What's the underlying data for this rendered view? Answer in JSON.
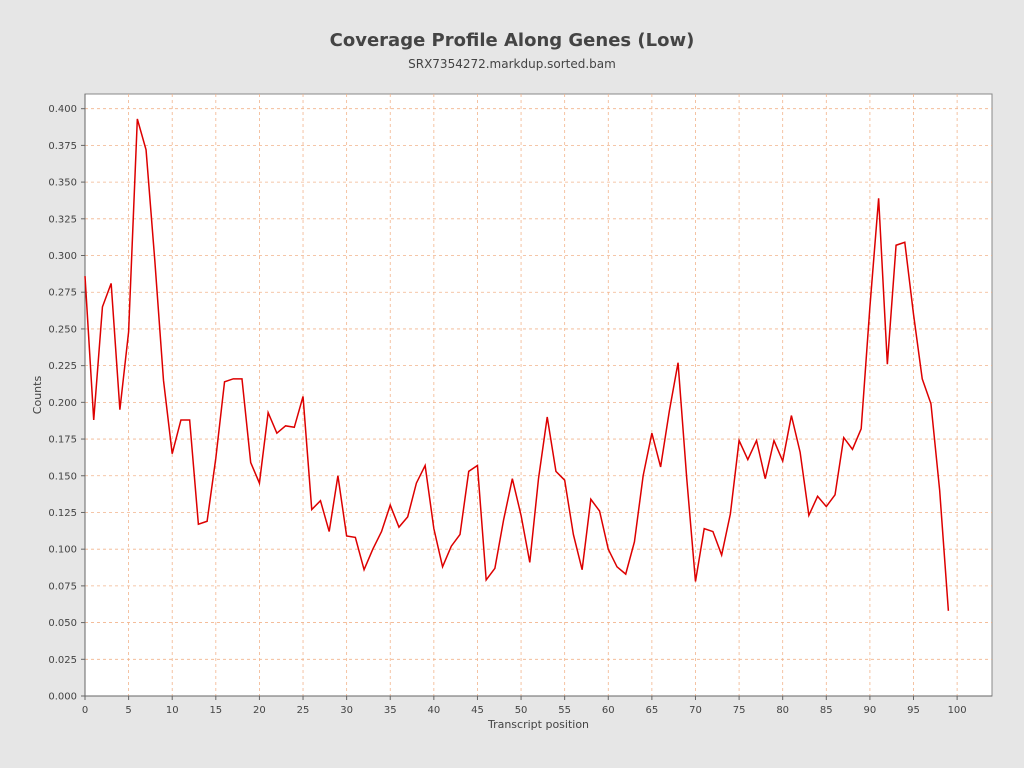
{
  "chart_data": {
    "type": "line",
    "title": "Coverage Profile Along Genes (Low)",
    "subtitle": "SRX7354272.markdup.sorted.bam",
    "xlabel": "Transcript position",
    "ylabel": "Counts",
    "xlim": [
      0,
      104
    ],
    "ylim": [
      0,
      0.41
    ],
    "x_ticks": [
      0,
      5,
      10,
      15,
      20,
      25,
      30,
      35,
      40,
      45,
      50,
      55,
      60,
      65,
      70,
      75,
      80,
      85,
      90,
      95,
      100
    ],
    "y_ticks": [
      0.0,
      0.025,
      0.05,
      0.075,
      0.1,
      0.125,
      0.15,
      0.175,
      0.2,
      0.225,
      0.25,
      0.275,
      0.3,
      0.325,
      0.35,
      0.375,
      0.4
    ],
    "y_tick_labels": [
      "0.000",
      "0.025",
      "0.050",
      "0.075",
      "0.100",
      "0.125",
      "0.150",
      "0.175",
      "0.200",
      "0.225",
      "0.250",
      "0.275",
      "0.300",
      "0.325",
      "0.350",
      "0.375",
      "0.400"
    ],
    "grid": true,
    "line_color": "#dd0000",
    "grid_color": "#f2b48c",
    "series": [
      {
        "x": [
          0,
          1,
          2,
          3,
          4,
          5,
          6,
          7,
          8,
          9,
          10,
          11,
          12,
          13,
          14,
          15,
          16,
          17,
          18,
          19,
          20,
          21,
          22,
          23,
          24,
          25,
          26,
          27,
          28,
          29,
          30,
          31,
          32,
          33,
          34,
          35,
          36,
          37,
          38,
          39,
          40,
          41,
          42,
          43,
          44,
          45,
          46,
          47,
          48,
          49,
          50,
          51,
          52,
          53,
          54,
          55,
          56,
          57,
          58,
          59,
          60,
          61,
          62,
          63,
          64,
          65,
          66,
          67,
          68,
          69,
          70,
          71,
          72,
          73,
          74,
          75,
          76,
          77,
          78,
          79,
          80,
          81,
          82,
          83,
          84,
          85,
          86,
          87,
          88,
          89,
          90,
          91,
          92,
          93,
          94,
          95,
          96,
          97,
          98,
          99
        ],
        "values": [
          0.286,
          0.188,
          0.265,
          0.281,
          0.195,
          0.248,
          0.393,
          0.372,
          0.297,
          0.215,
          0.165,
          0.188,
          0.188,
          0.117,
          0.119,
          0.162,
          0.214,
          0.216,
          0.216,
          0.159,
          0.145,
          0.193,
          0.179,
          0.184,
          0.183,
          0.204,
          0.127,
          0.133,
          0.112,
          0.15,
          0.109,
          0.108,
          0.086,
          0.1,
          0.112,
          0.13,
          0.115,
          0.122,
          0.145,
          0.157,
          0.114,
          0.088,
          0.102,
          0.11,
          0.153,
          0.157,
          0.079,
          0.087,
          0.12,
          0.148,
          0.123,
          0.091,
          0.148,
          0.19,
          0.153,
          0.147,
          0.11,
          0.086,
          0.134,
          0.126,
          0.1,
          0.088,
          0.083,
          0.105,
          0.15,
          0.179,
          0.156,
          0.194,
          0.227,
          0.148,
          0.078,
          0.114,
          0.112,
          0.096,
          0.124,
          0.174,
          0.161,
          0.174,
          0.148,
          0.174,
          0.16,
          0.191,
          0.166,
          0.123,
          0.136,
          0.129,
          0.137,
          0.176,
          0.168,
          0.182,
          0.265,
          0.339,
          0.226,
          0.307,
          0.309,
          0.26,
          0.216,
          0.199,
          0.14,
          0.058
        ]
      }
    ]
  }
}
